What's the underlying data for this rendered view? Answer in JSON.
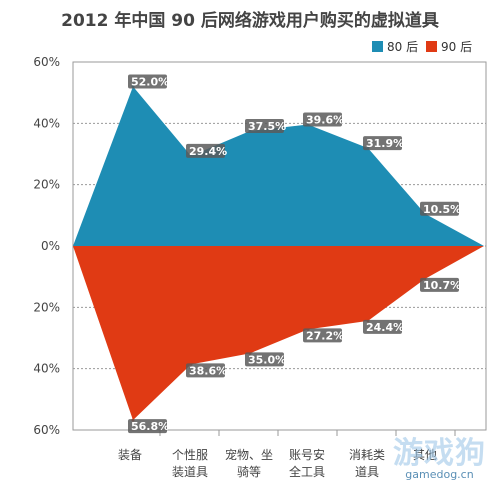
{
  "page": {
    "title": "2012 年中国 90 后网络游戏用户购买的虚拟道具"
  },
  "colors": {
    "series1": "#1e8db4",
    "series2": "#e03a14",
    "label_bg": "#5a5a5a",
    "label_text": "#ffffff",
    "grid": "#9a9a9a",
    "axis_text": "#444444"
  },
  "watermark": {
    "main": "游戏狗",
    "sub": "gamedog.cn"
  },
  "chart_data": {
    "type": "area",
    "title": "2012 年中国 90 后网络游戏用户购买的虚拟道具",
    "categories": [
      "装备",
      "个性服装道具",
      "宠物、坐骑等",
      "账号安全工具",
      "消耗类道具",
      "其他"
    ],
    "category_lines": [
      [
        "装备"
      ],
      [
        "个性服",
        "装道具"
      ],
      [
        "宠物、坐",
        "骑等"
      ],
      [
        "账号安",
        "全工具"
      ],
      [
        "消耗类",
        "道具"
      ],
      [
        "其他"
      ]
    ],
    "series": [
      {
        "name": "80 后",
        "values": [
          52.0,
          29.4,
          37.5,
          39.6,
          31.9,
          10.5
        ],
        "labels": [
          "52.0%",
          "29.4%",
          "37.5%",
          "39.6%",
          "31.9%",
          "10.5%"
        ],
        "direction": "up"
      },
      {
        "name": "90 后",
        "values": [
          56.8,
          38.6,
          35.0,
          27.2,
          24.4,
          10.7
        ],
        "labels": [
          "56.8%",
          "38.6%",
          "35.0%",
          "27.2%",
          "24.4%",
          "10.7%"
        ],
        "direction": "down"
      }
    ],
    "y_ticks": [
      "60%",
      "40%",
      "20%",
      "0%",
      "20%",
      "40%",
      "60%"
    ],
    "ylim": [
      -60,
      60
    ],
    "grid": true,
    "legend_position": "top-right"
  }
}
